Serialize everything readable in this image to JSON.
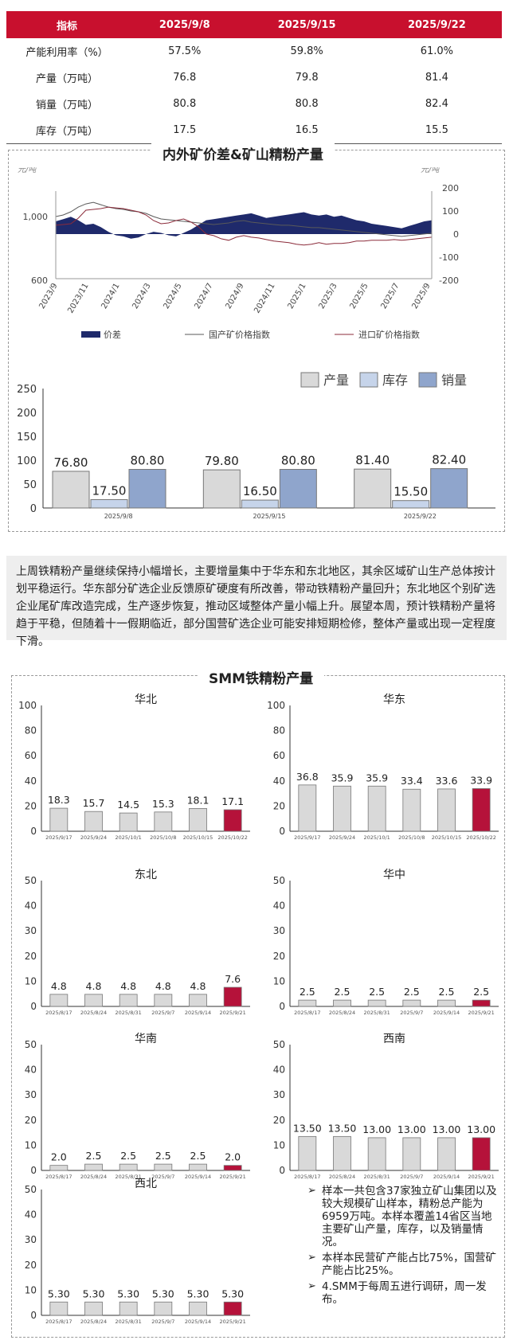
{
  "table": {
    "headers": [
      "指标",
      "2025/9/8",
      "2025/9/15",
      "2025/9/22"
    ],
    "rows": [
      [
        "产能利用率（%）",
        "57.5%",
        "59.8%",
        "61.0%"
      ],
      [
        "产量（万吨）",
        "76.8",
        "79.8",
        "81.4"
      ],
      [
        "销量（万吨）",
        "80.8",
        "80.8",
        "82.4"
      ],
      [
        "库存（万吨）",
        "17.5",
        "16.5",
        "15.5"
      ]
    ]
  },
  "spread_section_title": "内外矿价差&矿山精粉产量",
  "summary_text": "上周铁精粉产量继续保持小幅增长，主要增量集中于华东和东北地区，其余区域矿山生产总体按计划平稳运行。华东部分矿选企业反馈原矿硬度有所改善，带动铁精粉产量回升；东北地区个别矿选企业尾矿库改造完成，生产逐步恢复，推动区域整体产量小幅上升。展望本周，预计铁精粉产量将趋于平稳，但随着十一假期临近，部分国营矿选企业可能安排短期检修，整体产量或出现一定程度下滑。",
  "smm_section_title": "SMM铁精粉产量",
  "notes": [
    "样本一共包含37家独立矿山集团以及较大规模矿山样本，精粉总产能为6959万吨。本样本覆盖14省区当地主要矿山产量，库存，以及销量情况。",
    "本样本民营矿产能占比75%，国营矿产能占比25%。",
    "4.SMM于每周五进行调研，周一发布。"
  ],
  "colors": {
    "header_red": "#c8102e",
    "spread_navy": "#1f2a6b",
    "bar_gray": "#d9d9d9",
    "bar_lightblue": "#c6d4ea",
    "bar_blue": "#8fa5cc",
    "highlight_red": "#b5123a"
  },
  "chart_data": [
    {
      "type": "line",
      "title": "内外矿价差&矿山精粉产量",
      "ylabel_left": "元/吨",
      "ylabel_right": "元/吨",
      "y_left_ticks": [
        "1,000",
        "600"
      ],
      "y_right_ticks": [
        "200",
        "100",
        "0",
        "-100",
        "-200"
      ],
      "x_ticks": [
        "2023/9",
        "2023/11",
        "2024/1",
        "2024/3",
        "2024/5",
        "2024/7",
        "2024/9",
        "2024/11",
        "2025/1",
        "2025/3",
        "2025/5",
        "2025/7",
        "2025/9"
      ],
      "legend": [
        "价差",
        "国产矿价格指数",
        "进口矿价格指数"
      ],
      "series": [
        {
          "name": "价差",
          "kind": "area",
          "axis": "right",
          "values": [
            55,
            65,
            75,
            60,
            40,
            45,
            30,
            10,
            -5,
            -10,
            -20,
            -15,
            0,
            10,
            5,
            -5,
            -10,
            5,
            20,
            40,
            60,
            65,
            70,
            75,
            80,
            85,
            90,
            80,
            70,
            75,
            80,
            85,
            90,
            95,
            85,
            80,
            85,
            75,
            80,
            70,
            60,
            55,
            45,
            40,
            35,
            30,
            25,
            35,
            45,
            55,
            60
          ]
        },
        {
          "name": "国产矿价格指数",
          "kind": "line",
          "axis": "left",
          "values": [
            1000,
            1010,
            1030,
            1060,
            1080,
            1090,
            1075,
            1060,
            1050,
            1045,
            1035,
            1030,
            1020,
            1000,
            985,
            980,
            975,
            970,
            965,
            960,
            955,
            950,
            955,
            960,
            970,
            975,
            965,
            960,
            955,
            950,
            945,
            945,
            940,
            935,
            930,
            930,
            925,
            920,
            915,
            910,
            905,
            900,
            895,
            890,
            885,
            880,
            875,
            880,
            885,
            890,
            895
          ]
        },
        {
          "name": "进口矿价格指数",
          "kind": "line",
          "axis": "left",
          "values": [
            945,
            950,
            955,
            990,
            1040,
            1045,
            1050,
            1060,
            1055,
            1050,
            1040,
            1030,
            1010,
            975,
            955,
            960,
            975,
            985,
            965,
            935,
            890,
            880,
            860,
            850,
            870,
            880,
            870,
            865,
            855,
            845,
            840,
            835,
            825,
            820,
            825,
            835,
            825,
            830,
            830,
            835,
            845,
            845,
            850,
            850,
            850,
            855,
            850,
            855,
            860,
            865,
            870
          ]
        }
      ]
    },
    {
      "type": "bar",
      "categories": [
        "2025/9/8",
        "2025/9/15",
        "2025/9/22"
      ],
      "ylim": [
        0,
        250
      ],
      "yticks": [
        0,
        50,
        100,
        150,
        200,
        250
      ],
      "series": [
        {
          "name": "产量",
          "values": [
            76.8,
            79.8,
            81.4
          ],
          "labels": [
            "76.80",
            "79.80",
            "81.40"
          ]
        },
        {
          "name": "库存",
          "values": [
            17.5,
            16.5,
            15.5
          ],
          "labels": [
            "17.50",
            "16.50",
            "15.50"
          ]
        },
        {
          "name": "销量",
          "values": [
            80.8,
            80.8,
            82.4
          ],
          "labels": [
            "80.80",
            "80.80",
            "82.40"
          ]
        }
      ]
    },
    {
      "type": "bar",
      "title": "华北",
      "ylim": [
        0,
        100
      ],
      "yticks": [
        0,
        20,
        40,
        60,
        80,
        100
      ],
      "categories": [
        "2025/9/17",
        "2025/9/24",
        "2025/10/1",
        "2025/10/8",
        "2025/10/15",
        "2025/10/22"
      ],
      "values": [
        18.3,
        15.7,
        14.5,
        15.3,
        18.1,
        17.1
      ],
      "labels": [
        "18.3",
        "15.7",
        "14.5",
        "15.3",
        "18.1",
        "17.1"
      ]
    },
    {
      "type": "bar",
      "title": "华东",
      "ylim": [
        0,
        100
      ],
      "yticks": [
        0,
        20,
        40,
        60,
        80,
        100
      ],
      "categories": [
        "2025/9/17",
        "2025/9/24",
        "2025/10/1",
        "2025/10/8",
        "2025/10/15",
        "2025/10/22"
      ],
      "values": [
        36.8,
        35.9,
        35.9,
        33.4,
        33.6,
        33.9
      ],
      "labels": [
        "36.8",
        "35.9",
        "35.9",
        "33.4",
        "33.6",
        "33.9"
      ]
    },
    {
      "type": "bar",
      "title": "东北",
      "ylim": [
        0,
        50
      ],
      "yticks": [
        0,
        10,
        20,
        30,
        40,
        50
      ],
      "categories": [
        "2025/8/17",
        "2025/8/24",
        "2025/8/31",
        "2025/9/7",
        "2025/9/14",
        "2025/9/21"
      ],
      "values": [
        4.8,
        4.8,
        4.8,
        4.8,
        4.8,
        7.6
      ],
      "labels": [
        "4.8",
        "4.8",
        "4.8",
        "4.8",
        "4.8",
        "7.6"
      ]
    },
    {
      "type": "bar",
      "title": "华中",
      "ylim": [
        0,
        50
      ],
      "yticks": [
        0,
        10,
        20,
        30,
        40,
        50
      ],
      "categories": [
        "2025/8/17",
        "2025/8/24",
        "2025/8/31",
        "2025/9/7",
        "2025/9/14",
        "2025/9/21"
      ],
      "values": [
        2.5,
        2.5,
        2.5,
        2.5,
        2.5,
        2.5
      ],
      "labels": [
        "2.5",
        "2.5",
        "2.5",
        "2.5",
        "2.5",
        "2.5"
      ]
    },
    {
      "type": "bar",
      "title": "华南",
      "ylim": [
        0,
        50
      ],
      "yticks": [
        0,
        10,
        20,
        30,
        40,
        50
      ],
      "categories": [
        "2025/8/17",
        "2025/8/24",
        "2025/8/31",
        "2025/9/7",
        "2025/9/14",
        "2025/9/21"
      ],
      "values": [
        2.0,
        2.5,
        2.5,
        2.5,
        2.5,
        2.0
      ],
      "labels": [
        "2.0",
        "2.5",
        "2.5",
        "2.5",
        "2.5",
        "2.0"
      ]
    },
    {
      "type": "bar",
      "title": "西南",
      "ylim": [
        0,
        50
      ],
      "yticks": [
        0,
        10,
        20,
        30,
        40,
        50
      ],
      "categories": [
        "2025/8/17",
        "2025/8/24",
        "2025/8/31",
        "2025/9/7",
        "2025/9/14",
        "2025/9/21"
      ],
      "values": [
        13.5,
        13.5,
        13.0,
        13.0,
        13.0,
        13.0
      ],
      "labels": [
        "13.50",
        "13.50",
        "13.00",
        "13.00",
        "13.00",
        "13.00"
      ]
    },
    {
      "type": "bar",
      "title": "西北",
      "ylim": [
        0,
        50
      ],
      "yticks": [
        0,
        10,
        20,
        30,
        40,
        50
      ],
      "categories": [
        "2025/8/17",
        "2025/8/24",
        "2025/8/31",
        "2025/9/7",
        "2025/9/14",
        "2025/9/21"
      ],
      "values": [
        5.3,
        5.3,
        5.3,
        5.3,
        5.3,
        5.3
      ],
      "labels": [
        "5.30",
        "5.30",
        "5.30",
        "5.30",
        "5.30",
        "5.30"
      ]
    }
  ]
}
